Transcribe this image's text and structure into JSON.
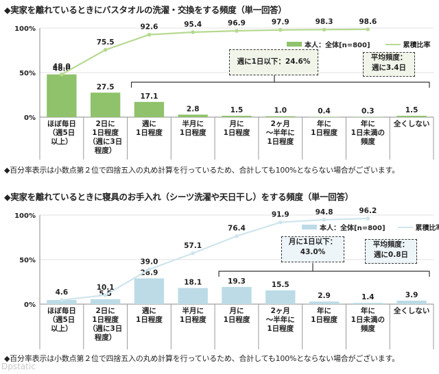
{
  "chart_data": [
    {
      "type": "bar",
      "title": "◆実家を離れているときにバスタオルの洗濯・交換をする頻度（単一回答）",
      "categories": [
        "ほぼ毎日\n（週5日\n以上）",
        "2日に\n1日程度\n（週に3日\n程度）",
        "週に\n1日程度",
        "半月に\n1日程度",
        "月に\n1日程度",
        "2ヶ月\n～半年に\n1日程度",
        "年に\n1日程度",
        "年に\n1日未満の\n頻度",
        "全くしない"
      ],
      "series": [
        {
          "name": "本人：全体[n=800]",
          "kind": "bar",
          "values": [
            48.0,
            27.5,
            17.1,
            2.8,
            1.5,
            1.0,
            0.4,
            0.3,
            1.5
          ]
        },
        {
          "name": "累積比率",
          "kind": "line",
          "values": [
            48.0,
            75.5,
            92.6,
            95.4,
            96.9,
            97.9,
            98.3,
            98.6,
            null
          ]
        }
      ],
      "bar_labels": [
        "48.0",
        "27.5",
        "17.1",
        "2.8",
        "1.5",
        "1.0",
        "0.4",
        "0.3",
        "1.5"
      ],
      "line_labels": [
        "48.0",
        "75.5",
        "92.6",
        "95.4",
        "96.9",
        "97.9",
        "98.3",
        "98.6",
        ""
      ],
      "yticks": [
        "0%",
        "50%",
        "100%"
      ],
      "ylim": [
        0,
        100
      ],
      "bar_color": "#8fc26a",
      "line_color": "#b6d98f",
      "callout_range": "週に1日以下：24.6%",
      "callout_avg_label": "平均頻度：",
      "callout_avg_value": "週に3.4日",
      "note": "◆百分率表示は小数点第２位で四捨五入の丸め計算を行っているため、合計しても100%とならない場合がございます。"
    },
    {
      "type": "bar",
      "title": "◆実家を離れているときに寝具のお手入れ（シーツ洗濯や天日干し）をする頻度（単一回答）",
      "categories": [
        "ほぼ毎日\n（週5日\n以上）",
        "2日に\n1日程度\n（週に3日\n程度）",
        "週に\n1日程度",
        "半月に\n1日程度",
        "月に\n1日程度",
        "2ヶ月\n～半年に\n1日程度",
        "年に\n1日程度",
        "年に\n1日未満の\n頻度",
        "全くしない"
      ],
      "series": [
        {
          "name": "本人：全体[n=800]",
          "kind": "bar",
          "values": [
            4.6,
            5.5,
            28.9,
            18.1,
            19.3,
            15.5,
            2.9,
            1.4,
            3.9
          ]
        },
        {
          "name": "累積比率",
          "kind": "line",
          "values": [
            4.6,
            10.1,
            39.0,
            57.1,
            76.4,
            91.9,
            94.8,
            96.2,
            null
          ]
        }
      ],
      "bar_labels": [
        "",
        "5.5",
        "28.9",
        "18.1",
        "19.3",
        "15.5",
        "2.9",
        "1.4",
        "3.9"
      ],
      "line_labels": [
        "4.6",
        "10.1",
        "39.0",
        "57.1",
        "76.4",
        "91.9",
        "94.8",
        "96.2",
        ""
      ],
      "yticks": [
        "0%",
        "50%",
        "100%"
      ],
      "ylim": [
        0,
        100
      ],
      "bar_color": "#bcdbe6",
      "line_color": "#cfe5ee",
      "callout_range": "月に1日以下：\n43.0%",
      "callout_avg_label": "平均頻度：",
      "callout_avg_value": "週に0.8日",
      "note": "◆百分率表示は小数点第２位で四捨五入の丸め計算を行っているため、合計しても100%とならない場合がございます。"
    }
  ],
  "watermark": "Dpstatic"
}
